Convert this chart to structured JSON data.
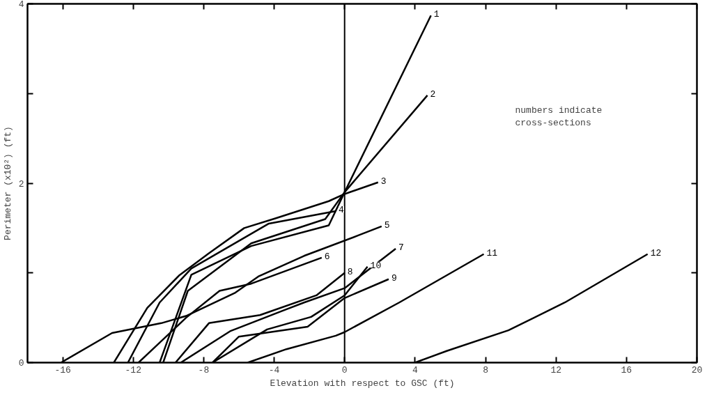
{
  "chart_data": {
    "type": "line",
    "xlabel": "Elevation with respect to GSC (ft)",
    "ylabel": "Perimeter (x10²) (ft)",
    "xlim": [
      -18,
      20
    ],
    "xticks": [
      -16,
      -12,
      -8,
      -4,
      0,
      4,
      8,
      12,
      16,
      20
    ],
    "ylim": [
      0,
      4
    ],
    "yticks": [
      0,
      {
        "value": 1,
        "label": null
      },
      2,
      {
        "value": 3,
        "label": null
      },
      4
    ],
    "grid": false,
    "marker": "none",
    "line_style": "solid",
    "ref_lines": [
      {
        "axis": "x",
        "value": 0,
        "color": "#000000"
      }
    ],
    "annotations": [
      "numbers indicate\ncross-sections"
    ],
    "series": [
      {
        "name": "1",
        "color": "#000000",
        "x": [
          -10.5,
          -8.7,
          -5.3,
          -0.9,
          0,
          4.9
        ],
        "values": [
          0,
          0.98,
          1.3,
          1.53,
          1.9,
          3.87
        ]
      },
      {
        "name": "2",
        "color": "#000000",
        "x": [
          -10.3,
          -8.9,
          -5.3,
          -1.1,
          0,
          4.7
        ],
        "values": [
          0,
          0.8,
          1.33,
          1.6,
          1.9,
          2.98
        ]
      },
      {
        "name": "3",
        "color": "#000000",
        "x": [
          -13.1,
          -11.2,
          -9.4,
          -7.7,
          -5.7,
          -3.9,
          -0.9,
          0,
          1.9
        ],
        "values": [
          0,
          0.61,
          0.97,
          1.22,
          1.5,
          1.61,
          1.8,
          1.88,
          2.01
        ]
      },
      {
        "name": "4",
        "color": "#000000",
        "x": [
          -12.3,
          -10.5,
          -8.7,
          -6.5,
          -4.3,
          -0.5
        ],
        "values": [
          0,
          0.67,
          1.05,
          1.3,
          1.55,
          1.69
        ]
      },
      {
        "name": "5",
        "color": "#000000",
        "x": [
          -16.1,
          -13.2,
          -10.4,
          -9.0,
          -6.2,
          -4.9,
          -2.3,
          0.8,
          2.1
        ],
        "values": [
          0,
          0.33,
          0.44,
          0.52,
          0.78,
          0.96,
          1.19,
          1.42,
          1.52
        ]
      },
      {
        "name": "6",
        "color": "#000000",
        "x": [
          -11.7,
          -9.0,
          -7.1,
          -5.3,
          -1.3
        ],
        "values": [
          0,
          0.5,
          0.8,
          0.88,
          1.17
        ]
      },
      {
        "name": "7",
        "color": "#000000",
        "x": [
          -9.3,
          -6.5,
          -3.5,
          -2.3,
          0,
          2.9
        ],
        "values": [
          0,
          0.35,
          0.58,
          0.67,
          0.83,
          1.27
        ]
      },
      {
        "name": "8",
        "color": "#000000",
        "x": [
          -9.6,
          -7.7,
          -4.8,
          -1.6,
          0
        ],
        "values": [
          0,
          0.44,
          0.53,
          0.75,
          1.0
        ]
      },
      {
        "name": "9",
        "color": "#000000",
        "x": [
          -7.5,
          -6.0,
          -2.1,
          0,
          2.5
        ],
        "values": [
          0,
          0.29,
          0.4,
          0.72,
          0.93
        ]
      },
      {
        "name": "10",
        "color": "#000000",
        "x": [
          -7.5,
          -4.4,
          -1.9,
          0,
          1.3
        ],
        "values": [
          0,
          0.37,
          0.51,
          0.75,
          1.07
        ]
      },
      {
        "name": "11",
        "color": "#000000",
        "x": [
          -5.5,
          -3.3,
          -0.5,
          0,
          3.1,
          7.9
        ],
        "values": [
          0,
          0.15,
          0.3,
          0.34,
          0.67,
          1.21
        ]
      },
      {
        "name": "12",
        "color": "#000000",
        "x": [
          4.0,
          5.8,
          9.3,
          12.5,
          17.2
        ],
        "values": [
          0,
          0.13,
          0.36,
          0.67,
          1.21
        ]
      }
    ]
  }
}
